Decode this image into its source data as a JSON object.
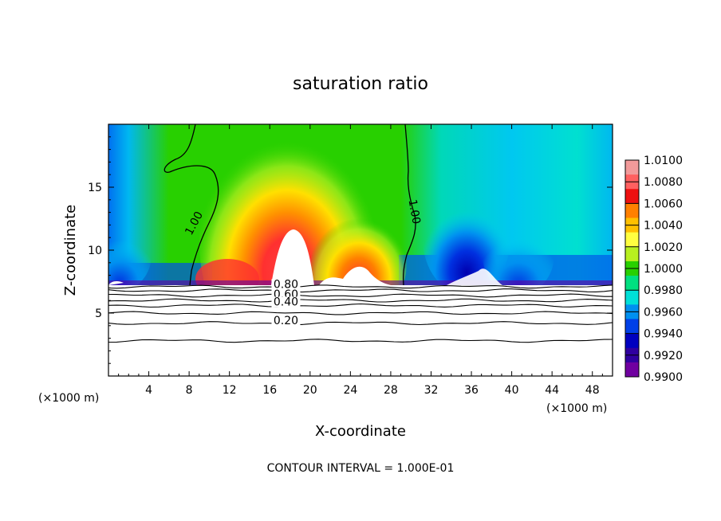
{
  "chart_data": {
    "type": "heatmap",
    "title": "saturation ratio",
    "xlabel": "X-coordinate",
    "ylabel": "Z-coordinate",
    "x_unit_left": "(×1000 m)",
    "x_unit_right": "(×1000 m)",
    "xlim": [
      0,
      50
    ],
    "ylim": [
      0,
      20
    ],
    "x_ticks": [
      4,
      8,
      12,
      16,
      20,
      24,
      28,
      32,
      36,
      40,
      44,
      48
    ],
    "y_ticks": [
      5,
      10,
      15
    ],
    "footer": "CONTOUR INTERVAL = 1.000E-01",
    "colorbar": {
      "min": 0.99,
      "max": 1.01,
      "labels": [
        "1.0100",
        "1.0080",
        "1.0060",
        "1.0040",
        "1.0020",
        "1.0000",
        "0.9980",
        "0.9960",
        "0.9940",
        "0.9920",
        "0.9900"
      ],
      "colors": [
        "#f29a9a",
        "#ff6060",
        "#ee1010",
        "#ff8000",
        "#ffc000",
        "#ffff40",
        "#b8f020",
        "#28d000",
        "#00e080",
        "#00e0d8",
        "#0090f0",
        "#0040e8",
        "#0000c0",
        "#3000a0",
        "#7000a0"
      ]
    },
    "contour_labels": [
      {
        "text": "1.00",
        "x": 8.8,
        "y": 12.0
      },
      {
        "text": "1.00",
        "x": 30.0,
        "y": 13.0
      },
      {
        "text": "0.80",
        "x": 17.6,
        "y": 7.0
      },
      {
        "text": "0.60",
        "x": 17.6,
        "y": 6.2
      },
      {
        "text": "0.40",
        "x": 17.6,
        "y": 5.6
      },
      {
        "text": "0.20",
        "x": 17.6,
        "y": 4.1
      }
    ],
    "contour_lines": [
      {
        "level": 0.2,
        "y": 4.2
      },
      {
        "level": 0.1,
        "y": 2.8
      },
      {
        "level": 0.3,
        "y": 5.0
      },
      {
        "level": 0.4,
        "y": 5.6
      },
      {
        "level": 0.5,
        "y": 6.0
      },
      {
        "level": 0.6,
        "y": 6.4
      },
      {
        "level": 0.7,
        "y": 6.8
      },
      {
        "level": 0.8,
        "y": 7.1
      }
    ]
  }
}
